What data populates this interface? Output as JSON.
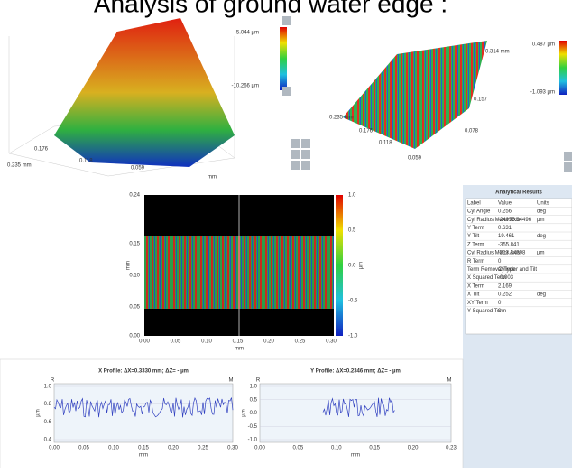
{
  "title": "Analysis of ground water edge :",
  "surface_left": {
    "labels": [
      "0.235 mm",
      "0.176",
      "0.118",
      "0.059",
      "mm"
    ],
    "colorbar": [
      "-5.044 µm",
      "-10.266 µm"
    ]
  },
  "surface_right": {
    "labels": [
      "0.235 mm",
      "0.176",
      "0.118",
      "0.059",
      "0.078",
      "0.157",
      "0.314 mm"
    ],
    "colorbar": [
      "0.487 µm",
      "-1.093 µm"
    ]
  },
  "map": {
    "yticks": [
      "0.24",
      "0.15",
      "0.10",
      "0.05",
      "0.00"
    ],
    "y_label": "mm",
    "xticks": [
      "0.00",
      "0.05",
      "0.10",
      "0.15",
      "0.20",
      "0.25",
      "0.30"
    ],
    "x_label": "mm",
    "colorbar_ticks": [
      "1.0",
      "0.5",
      "0.0",
      "-0.5",
      "-1.0"
    ],
    "colorbar_label": "µm"
  },
  "table": {
    "title": "Analytical Results",
    "header": [
      "Label",
      "Value",
      "Units"
    ],
    "rows": [
      [
        "Cyl Angle",
        "0.256",
        "deg"
      ],
      [
        "Cyl Radius Major Axis",
        "-24955.94496",
        "µm"
      ],
      [
        "Y Term",
        "0.631"
      ],
      [
        "Y Tilt",
        "19.461",
        "deg"
      ],
      [
        "Z Term",
        "-355.841"
      ],
      [
        "Cyl Radius Minor Axis",
        "-313.34698",
        "µm"
      ],
      [
        "R Term",
        "0"
      ],
      [
        "Term Removal Type",
        "Cylinder and Tilt"
      ],
      [
        "X Squared Term",
        "-0.003"
      ],
      [
        "X Term",
        "2.169"
      ],
      [
        "X Tilt",
        "0.252",
        "deg"
      ],
      [
        "XY Term",
        "0"
      ],
      [
        "Y Squared Term",
        "0"
      ]
    ]
  },
  "x_profile": {
    "title": "X Profile: ΔX=0.3330 mm; ΔZ= - µm",
    "markers": [
      "R",
      "M"
    ],
    "yticks": [
      "1.0",
      "0.8",
      "0.6",
      "0.4"
    ],
    "y_label": "µm",
    "xticks": [
      "0.00",
      "0.05",
      "0.10",
      "0.15",
      "0.20",
      "0.25",
      "0.30"
    ],
    "x_label": "mm"
  },
  "y_profile": {
    "title": "Y Profile: ΔX=0.2346 mm; ΔZ= - µm",
    "markers": [
      "R",
      "M"
    ],
    "yticks": [
      "1.0",
      "0.5",
      "0.0",
      "-0.5",
      "-1.0"
    ],
    "y_label": "µm",
    "xticks": [
      "0.00",
      "0.05",
      "0.10",
      "0.15",
      "0.20",
      "0.23"
    ],
    "x_label": "mm"
  }
}
